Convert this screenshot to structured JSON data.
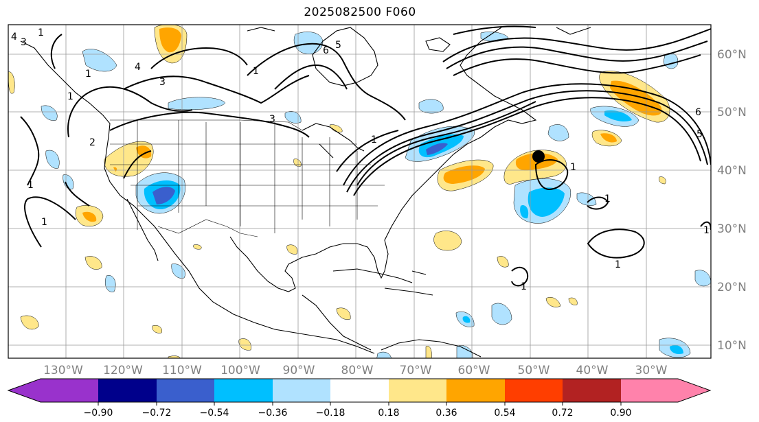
{
  "title": "2025082500 F060",
  "map": {
    "lon_labels": [
      "130°W",
      "120°W",
      "110°W",
      "100°W",
      "90°W",
      "80°W",
      "70°W",
      "60°W",
      "50°W",
      "40°W",
      "30°W"
    ],
    "lat_labels": [
      "60°N",
      "50°N",
      "40°N",
      "30°N",
      "20°N",
      "10°N"
    ],
    "contour_labels": [
      "4",
      "3",
      "1",
      "4",
      "1",
      "2",
      "3",
      "1",
      "3",
      "1",
      "1",
      "1",
      "1",
      "6",
      "5",
      "1",
      "1",
      "6",
      "5",
      "1",
      "1",
      "1"
    ],
    "label_color": "#808080"
  },
  "colorbar": {
    "ticks": [
      "−0.90",
      "−0.72",
      "−0.54",
      "−0.36",
      "−0.18",
      "0.18",
      "0.36",
      "0.54",
      "0.72",
      "0.90"
    ],
    "colors": [
      "#9932cc",
      "#00008b",
      "#3a5fcd",
      "#00bfff",
      "#b0e2ff",
      "#ffffff",
      "#ffe78a",
      "#ffa500",
      "#ff3e00",
      "#b22222",
      "#ff82ab"
    ]
  },
  "colors": {
    "light_blue": "#b0e2ff",
    "blue": "#00bfff",
    "mid_blue": "#3a5fcd",
    "light_yellow": "#ffe78a",
    "orange": "#ffa500",
    "contour": "#000000",
    "grid": "#999999"
  }
}
